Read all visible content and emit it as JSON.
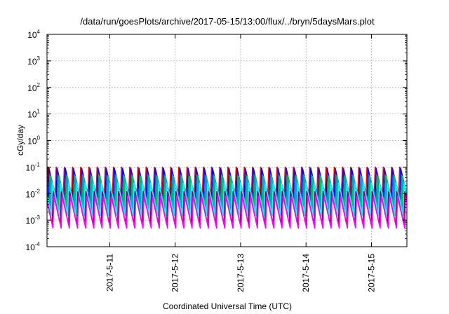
{
  "chart_data": {
    "type": "line",
    "title": "/data/run/goesPlots/archive/2017-05-15/13:00/flux/../bryn/5daysMars.plot",
    "xlabel": "Coordinated Universal Time (UTC)",
    "ylabel": "cGy/day",
    "yscale": "log",
    "ylim": [
      0.0001,
      10000
    ],
    "xlim": [
      "2017-05-10T01:00",
      "2017-05-15T13:00"
    ],
    "yticks": [
      {
        "value": 0.0001,
        "base": "10",
        "exp": "-4"
      },
      {
        "value": 0.001,
        "base": "10",
        "exp": "-3"
      },
      {
        "value": 0.01,
        "base": "10",
        "exp": "-2"
      },
      {
        "value": 0.1,
        "base": "10",
        "exp": "-1"
      },
      {
        "value": 1,
        "base": "10",
        "exp": "0"
      },
      {
        "value": 10,
        "base": "10",
        "exp": "1"
      },
      {
        "value": 100,
        "base": "10",
        "exp": "2"
      },
      {
        "value": 1000,
        "base": "10",
        "exp": "3"
      },
      {
        "value": 10000,
        "base": "10",
        "exp": "4"
      }
    ],
    "xticks": [
      {
        "value": "2017-05-11T00:00",
        "label": "2017-5-11"
      },
      {
        "value": "2017-05-12T00:00",
        "label": "2017-5-12"
      },
      {
        "value": "2017-05-13T00:00",
        "label": "2017-5-13"
      },
      {
        "value": "2017-05-14T00:00",
        "label": "2017-5-14"
      },
      {
        "value": "2017-05-15T00:00",
        "label": "2017-5-15"
      }
    ],
    "grid": true,
    "sawtooth_period_hours": 3,
    "series": [
      {
        "color": "#ff0000",
        "peak": 0.1,
        "trough": 0.01,
        "phase_hours": 0.0
      },
      {
        "color": "#0000ff",
        "peak": 0.09,
        "trough": 0.006,
        "phase_hours": 0.35
      },
      {
        "color": "#008b8b",
        "peak": 0.05,
        "trough": 0.004,
        "phase_hours": 0.7
      },
      {
        "color": "#00cc33",
        "peak": 0.045,
        "trough": 0.003,
        "phase_hours": 1.0
      },
      {
        "color": "#2090ff",
        "peak": 0.035,
        "trough": 0.0025,
        "phase_hours": 1.3
      },
      {
        "color": "#00ffff",
        "peak": 0.025,
        "trough": 0.0015,
        "phase_hours": 1.6
      },
      {
        "color": "#8b0060",
        "peak": 0.012,
        "trough": 0.0007,
        "phase_hours": 1.9
      },
      {
        "color": "#ff00ff",
        "peak": 0.008,
        "trough": 0.0005,
        "phase_hours": 2.2
      }
    ]
  }
}
